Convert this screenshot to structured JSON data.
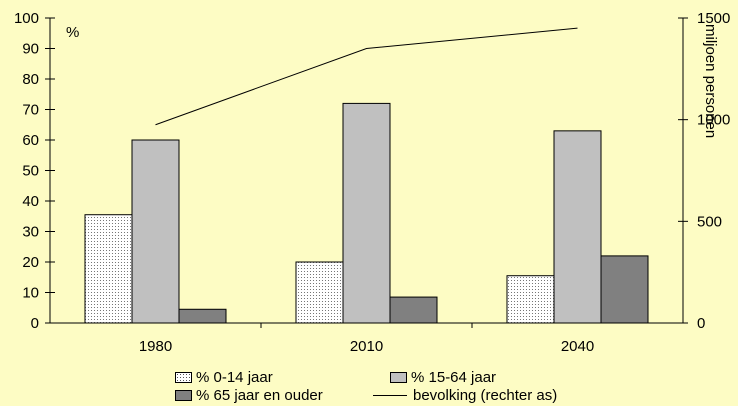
{
  "chart_data": {
    "type": "bar",
    "categories": [
      "1980",
      "2010",
      "2040"
    ],
    "series": [
      {
        "name": "% 0-14 jaar",
        "values": [
          35.5,
          20,
          15.5
        ],
        "color": "#ffffff",
        "pattern": "dots"
      },
      {
        "name": "% 15-64 jaar",
        "values": [
          60,
          72,
          63
        ],
        "color": "#c0c0c0"
      },
      {
        "name": "% 65 jaar en ouder",
        "values": [
          4.5,
          8.5,
          22
        ],
        "color": "#808080"
      }
    ],
    "line_series": {
      "name": "bevolking (rechter as)",
      "values": [
        975,
        1350,
        1450
      ],
      "axis": "right",
      "color": "#000000"
    },
    "left_axis": {
      "label": "%",
      "ylim": [
        0,
        100
      ],
      "ticks": [
        0,
        10,
        20,
        30,
        40,
        50,
        60,
        70,
        80,
        90,
        100
      ]
    },
    "right_axis": {
      "label": "miljoen personen",
      "ylim": [
        0,
        1500
      ],
      "ticks": [
        0,
        500,
        1000,
        1500
      ]
    },
    "grid": false,
    "legend_position": "bottom"
  }
}
